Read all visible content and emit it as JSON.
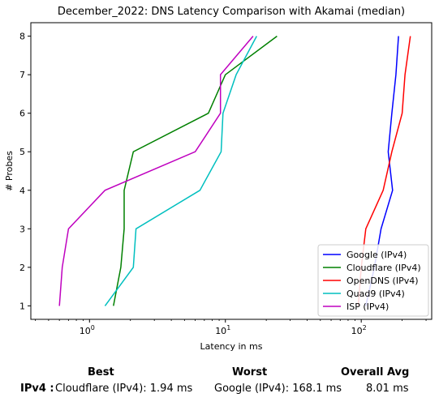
{
  "chart_data": {
    "type": "line",
    "title": "December_2022: DNS Latency Comparison with Akamai (median)",
    "xlabel": "Latency in ms",
    "ylabel": "# Probes",
    "xscale": "log",
    "xlim": [
      0.37,
      330
    ],
    "ylim": [
      0.65,
      8.35
    ],
    "x_tick_labels": [
      "10^0",
      "10^1",
      "10^2"
    ],
    "y_ticks": [
      1,
      2,
      3,
      4,
      5,
      6,
      7,
      8
    ],
    "grid": false,
    "legend_position": "lower-right",
    "series": [
      {
        "name": "Google (IPv4)",
        "color": "#0000ff",
        "points": [
          [
            108,
            1
          ],
          [
            125,
            2
          ],
          [
            140,
            3
          ],
          [
            170,
            4
          ],
          [
            158,
            5
          ],
          [
            168,
            6
          ],
          [
            180,
            7
          ],
          [
            188,
            8
          ]
        ]
      },
      {
        "name": "Cloudflare (IPv4)",
        "color": "#008000",
        "points": [
          [
            1.5,
            1
          ],
          [
            1.7,
            2
          ],
          [
            1.8,
            3
          ],
          [
            1.8,
            4
          ],
          [
            2.1,
            5
          ],
          [
            7.5,
            6
          ],
          [
            10,
            7
          ],
          [
            24,
            8
          ]
        ]
      },
      {
        "name": "OpenDNS (IPv4)",
        "color": "#ff0000",
        "points": [
          [
            95,
            1
          ],
          [
            100,
            2
          ],
          [
            108,
            3
          ],
          [
            145,
            4
          ],
          [
            168,
            5
          ],
          [
            200,
            6
          ],
          [
            210,
            7
          ],
          [
            230,
            8
          ]
        ]
      },
      {
        "name": "Quad9 (IPv4)",
        "color": "#00bfbf",
        "points": [
          [
            1.3,
            1
          ],
          [
            2.1,
            2
          ],
          [
            2.2,
            3
          ],
          [
            6.5,
            4
          ],
          [
            9.3,
            5
          ],
          [
            9.6,
            6
          ],
          [
            12,
            7
          ],
          [
            17,
            8
          ]
        ]
      },
      {
        "name": "ISP (IPv4)",
        "color": "#bf00bf",
        "points": [
          [
            0.6,
            1
          ],
          [
            0.63,
            2
          ],
          [
            0.7,
            3
          ],
          [
            1.3,
            4
          ],
          [
            6,
            5
          ],
          [
            9.2,
            6
          ],
          [
            9.2,
            7
          ],
          [
            16,
            8
          ]
        ]
      }
    ]
  },
  "summary": {
    "best_header": "Best",
    "worst_header": "Worst",
    "avg_header": "Overall Avg",
    "row_label": "IPv4 :",
    "best_value": "Cloudflare (IPv4): 1.94 ms",
    "worst_value": "Google (IPv4): 168.1 ms",
    "avg_value": "8.01 ms"
  }
}
